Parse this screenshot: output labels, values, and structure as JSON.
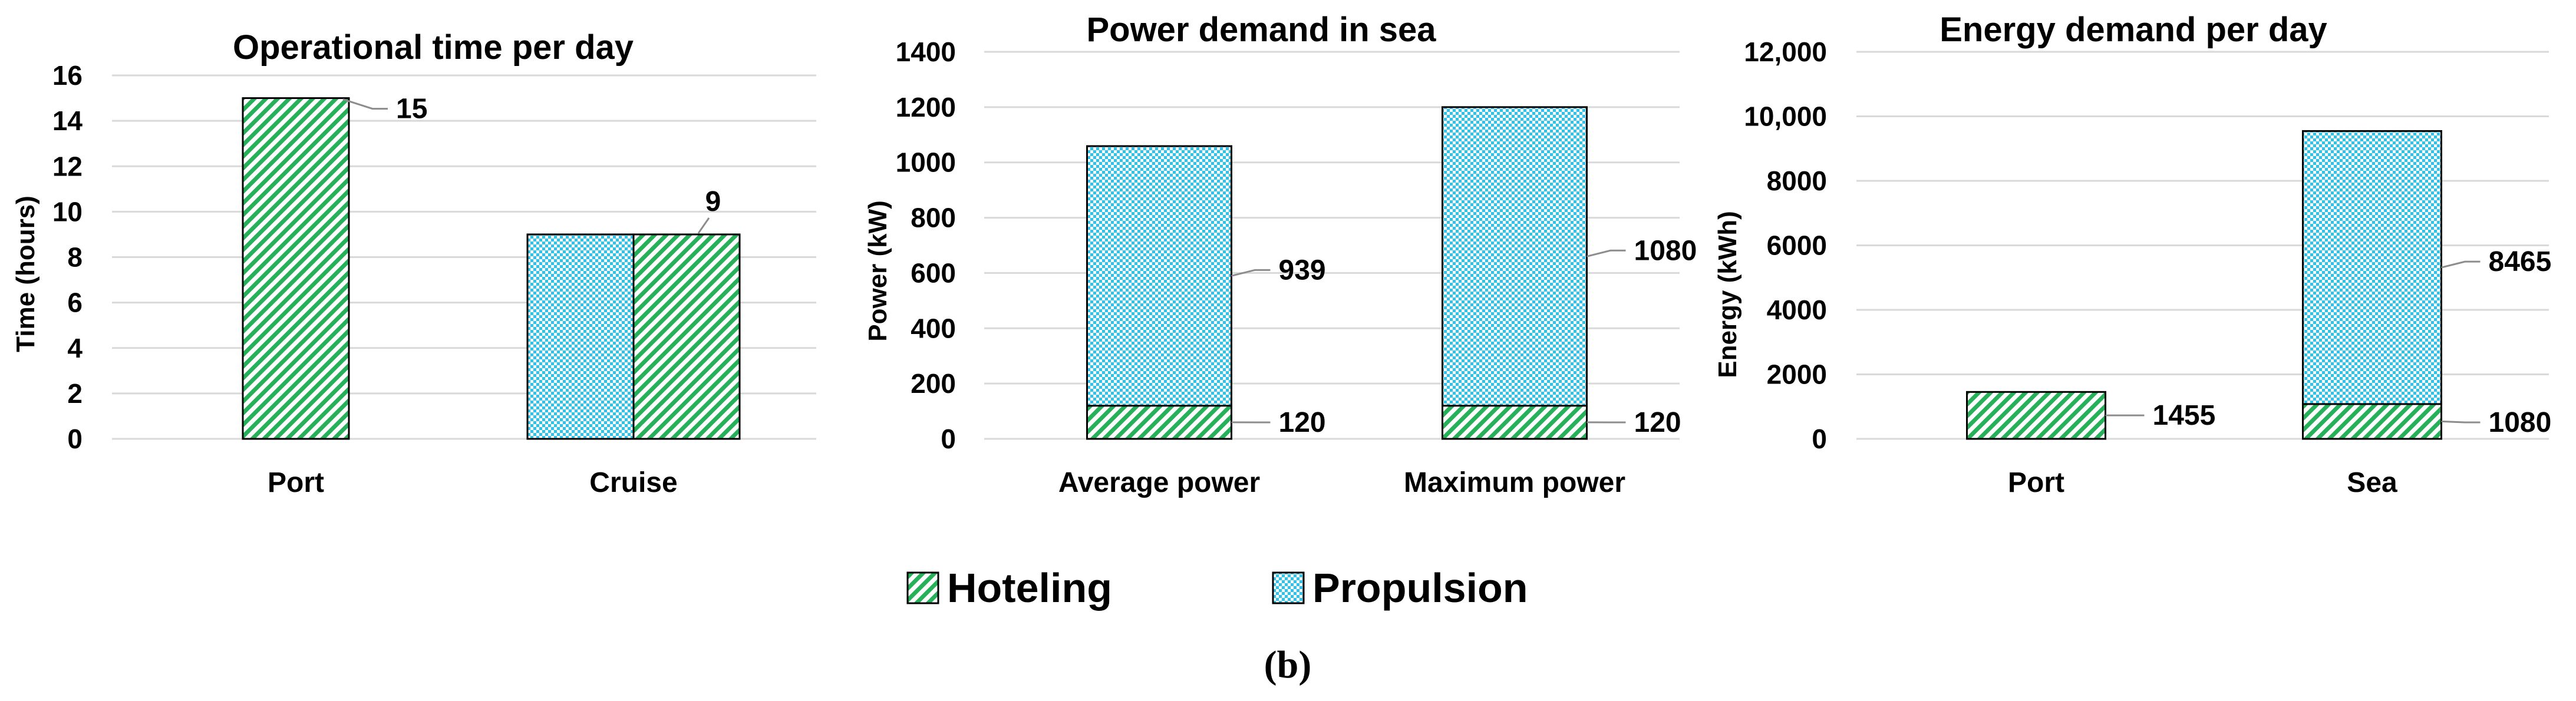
{
  "colors": {
    "hoteling": "#27b05a",
    "propulsion": "#2ec3ea",
    "grid": "#d9d9d9",
    "leader": "#8c8c8c"
  },
  "legend": {
    "hoteling": "Hoteling",
    "propulsion": "Propulsion"
  },
  "panel_label": "(b)",
  "chart_data": [
    {
      "type": "bar",
      "title": "Operational time per day",
      "ylabel": "Time (hours)",
      "ylim": [
        0,
        16
      ],
      "yticks": [
        "0",
        "2",
        "4",
        "6",
        "8",
        "10",
        "12",
        "14",
        "16"
      ],
      "categories": [
        "Port",
        "Cruise"
      ],
      "series": [
        {
          "name": "Propulsion",
          "values": [
            0,
            9
          ]
        },
        {
          "name": "Hoteling",
          "values": [
            15,
            9
          ]
        }
      ],
      "data_labels": [
        "15",
        "9"
      ],
      "grid": true
    },
    {
      "type": "bar",
      "stacked": true,
      "title": "Power demand in sea",
      "ylabel": "Power (kW)",
      "ylim": [
        0,
        1400
      ],
      "yticks": [
        "0",
        "200",
        "400",
        "600",
        "800",
        "1000",
        "1200",
        "1400"
      ],
      "categories": [
        "Average power",
        "Maximum power"
      ],
      "series": [
        {
          "name": "Hoteling",
          "values": [
            120,
            120
          ]
        },
        {
          "name": "Propulsion",
          "values": [
            939,
            1080
          ]
        }
      ],
      "data_labels": {
        "Hoteling": [
          "120",
          "120"
        ],
        "Propulsion": [
          "939",
          "1080"
        ]
      },
      "grid": true
    },
    {
      "type": "bar",
      "stacked": true,
      "title": "Energy demand per day",
      "ylabel": "Energy (kWh)",
      "ylim": [
        0,
        12000
      ],
      "yticks": [
        "0",
        "2000",
        "4000",
        "6000",
        "8000",
        "10,000",
        "12,000"
      ],
      "categories": [
        "Port",
        "Sea"
      ],
      "series": [
        {
          "name": "Hoteling",
          "values": [
            1455,
            1080
          ]
        },
        {
          "name": "Propulsion",
          "values": [
            0,
            8465
          ]
        }
      ],
      "data_labels": {
        "Hoteling": [
          "1455",
          "1080"
        ],
        "Propulsion": [
          "",
          "8465"
        ]
      },
      "grid": true
    }
  ]
}
